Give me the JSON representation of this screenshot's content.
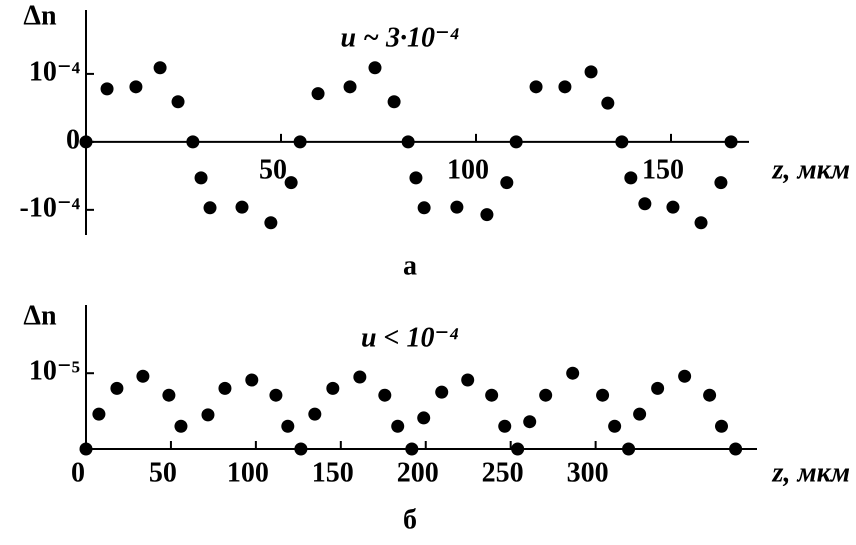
{
  "chart_data": [
    {
      "type": "scatter",
      "y_label": "Δn",
      "x_label": "z, мкм",
      "annotation": "u ~ 3·10⁻⁴",
      "caption": "а",
      "color": "#000000",
      "xlim": [
        0,
        170
      ],
      "ylim": [
        -0.000137,
        0.000194
      ],
      "xticks": [
        50,
        100,
        150
      ],
      "yticks": [
        {
          "value": -0.0001,
          "label": "-10⁻⁴"
        },
        0,
        {
          "value": 0.0001,
          "label": "10⁻⁴"
        }
      ],
      "x": [
        0,
        5.4,
        12.8,
        19.0,
        23.6,
        27.4,
        29.5,
        31.8,
        40.0,
        47.4,
        52.6,
        54.9,
        59.5,
        67.7,
        74.1,
        79.0,
        82.6,
        84.6,
        86.7,
        95.1,
        102.8,
        107.9,
        110.3,
        115.4,
        122.8,
        129.5,
        133.8,
        137.4,
        139.7,
        143.3,
        150.5,
        157.7,
        162.8,
        165.4
      ],
      "values": [
        0,
        7.8e-05,
        8.1e-05,
        0.000109,
        5.9e-05,
        0,
        -5.3e-05,
        -9.7e-05,
        -9.6e-05,
        -0.000119,
        -6e-05,
        0,
        7.1e-05,
        8.1e-05,
        0.000109,
        5.9e-05,
        0,
        -5.3e-05,
        -9.7e-05,
        -9.6e-05,
        -0.000107,
        -6e-05,
        0,
        8.1e-05,
        8.1e-05,
        0.000103,
        5.7e-05,
        0,
        -5.3e-05,
        -9.1e-05,
        -9.6e-05,
        -0.000119,
        -6e-05,
        0
      ]
    },
    {
      "type": "scatter",
      "y_label": "Δn",
      "x_label": "z, мкм",
      "annotation": "u < 10⁻⁴",
      "caption": "б",
      "color": "#000000",
      "xlim": [
        0,
        395
      ],
      "ylim": [
        0,
        1.9e-05
      ],
      "xticks": [
        0,
        50,
        100,
        150,
        200,
        250,
        300
      ],
      "yticks": [
        {
          "value": 1e-05,
          "label": "10⁻⁵"
        }
      ],
      "x": [
        0,
        7.6,
        18.2,
        33.5,
        48.8,
        55.9,
        71.8,
        81.8,
        97.6,
        111.8,
        118.8,
        126.5,
        134.7,
        145.3,
        161.2,
        175.9,
        183.5,
        191.8,
        198.8,
        209.4,
        224.7,
        238.8,
        246.5,
        254.1,
        261.2,
        270.6,
        286.5,
        304.1,
        311.2,
        319.4,
        325.9,
        336.5,
        352.4,
        367.1,
        374.1,
        382.4
      ],
      "values": [
        0,
        4.6e-06,
        8e-06,
        9.6e-06,
        7.1e-06,
        3e-06,
        4.5e-06,
        8e-06,
        9.1e-06,
        7.1e-06,
        3e-06,
        0,
        4.6e-06,
        8e-06,
        9.5e-06,
        7.1e-06,
        3e-06,
        0,
        4.1e-06,
        7.5e-06,
        9.1e-06,
        7.1e-06,
        3e-06,
        0,
        3.6e-06,
        7.1e-06,
        1e-05,
        7.1e-06,
        3e-06,
        0,
        4.6e-06,
        8e-06,
        9.6e-06,
        7.1e-06,
        3e-06,
        0
      ]
    }
  ]
}
